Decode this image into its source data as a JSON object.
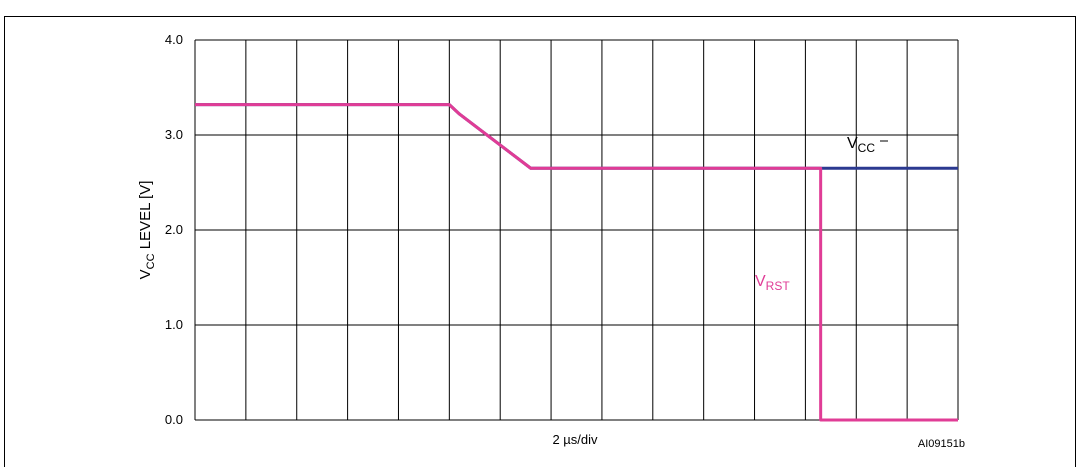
{
  "chart_data": {
    "type": "line",
    "xlabel": "2 µs/div",
    "ylabel_main": "V",
    "ylabel_sub": "CC",
    "ylabel_rest": " LEVEL [V]",
    "ylim": [
      0,
      4
    ],
    "y_ticks": [
      "0.0",
      "1.0",
      "2.0",
      "3.0",
      "4.0"
    ],
    "x_divisions": 15,
    "xlim": [
      0,
      15
    ],
    "grid": true,
    "series": [
      {
        "name_main": "V",
        "name_sub": "CC",
        "color": "#2b3990",
        "x": [
          0,
          5,
          5.2,
          6.6,
          12.3,
          15
        ],
        "y": [
          3.32,
          3.32,
          3.22,
          2.65,
          2.65,
          2.65
        ]
      },
      {
        "name_main": "V",
        "name_sub": "RST",
        "color": "#e03c96",
        "x": [
          0,
          5,
          5.2,
          6.6,
          12.3,
          12.3,
          15
        ],
        "y": [
          3.32,
          3.32,
          3.22,
          2.65,
          2.65,
          0.0,
          0.0
        ]
      }
    ],
    "figure_id": "AI09151b"
  }
}
